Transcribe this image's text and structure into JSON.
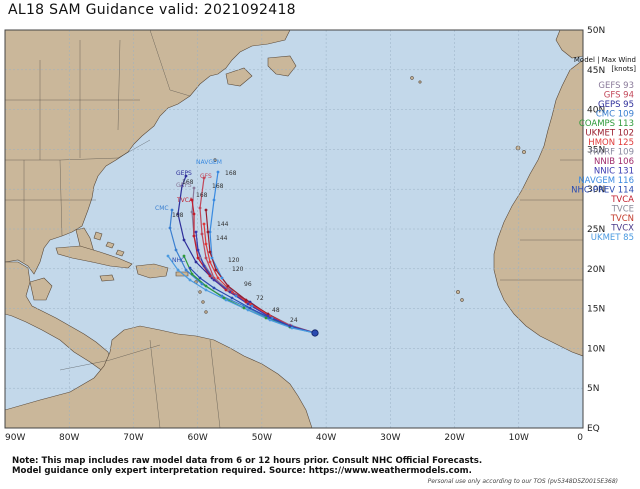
{
  "title": "AL18 SAM Guidance valid: 2021092418",
  "map": {
    "ocean_color": "#c3d8ea",
    "land_color": "#cab79a",
    "border_color": "#333333",
    "lon_labels": [
      "90W",
      "80W",
      "70W",
      "60W",
      "50W",
      "40W",
      "30W",
      "20W",
      "10W",
      "0"
    ],
    "lat_labels": [
      "50N",
      "45N",
      "40N",
      "35N",
      "30N",
      "25N",
      "20N",
      "15N",
      "10N",
      "5N",
      "EQ"
    ]
  },
  "legend": {
    "header_line1": "Model | Max Wind",
    "header_line2": "[knots]",
    "entries": [
      {
        "model": "GEFS",
        "wind": "93",
        "color": "#8a7a9a"
      },
      {
        "model": "GFS",
        "wind": "94",
        "color": "#c2485a"
      },
      {
        "model": "GEPS",
        "wind": "95",
        "color": "#2e2e9a"
      },
      {
        "model": "CMC",
        "wind": "109",
        "color": "#3a7fd0"
      },
      {
        "model": "COAMPS",
        "wind": "113",
        "color": "#2e9a3a"
      },
      {
        "model": "UKMET",
        "wind": "102",
        "color": "#9a1e2e"
      },
      {
        "model": "HMON",
        "wind": "125",
        "color": "#e03a3a"
      },
      {
        "model": "HWRF",
        "wind": "109",
        "color": "#8a8aa0"
      },
      {
        "model": "NNIB",
        "wind": "106",
        "color": "#a02a6a"
      },
      {
        "model": "NNIC",
        "wind": "131",
        "color": "#3a3ab0"
      },
      {
        "model": "NAVGEM",
        "wind": "116",
        "color": "#3a8ae0"
      },
      {
        "model": "NHC-PREV",
        "wind": "114",
        "color": "#2a4ab0"
      },
      {
        "model": "TVCA",
        "wind": "",
        "color": "#c21e2e"
      },
      {
        "model": "TVCE",
        "wind": "",
        "color": "#8a8a9a"
      },
      {
        "model": "TVCN",
        "wind": "",
        "color": "#c23a2a"
      },
      {
        "model": "TVCX",
        "wind": "",
        "color": "#4a3a8a"
      },
      {
        "model": "UKMET",
        "wind": "85",
        "color": "#4a9ae0"
      }
    ]
  },
  "track_labels": [
    {
      "text": "NAVGEM",
      "color": "#3a8ae0"
    },
    {
      "text": "168",
      "color": "#333333"
    },
    {
      "text": "GEPS",
      "color": "#2e2e9a"
    },
    {
      "text": "168",
      "color": "#333333"
    },
    {
      "text": "GFS",
      "color": "#c2485a"
    },
    {
      "text": "168",
      "color": "#333333"
    },
    {
      "text": "GEFS",
      "color": "#8a7a9a"
    },
    {
      "text": "168",
      "color": "#333333"
    },
    {
      "text": "TVCA",
      "color": "#c21e2e"
    },
    {
      "text": "CMC",
      "color": "#3a7fd0"
    },
    {
      "text": "168",
      "color": "#333333"
    },
    {
      "text": "144",
      "color": "#333333"
    },
    {
      "text": "144",
      "color": "#333333"
    },
    {
      "text": "120",
      "color": "#333333"
    },
    {
      "text": "120",
      "color": "#333333"
    },
    {
      "text": "96",
      "color": "#333333"
    },
    {
      "text": "72",
      "color": "#333333"
    },
    {
      "text": "48",
      "color": "#333333"
    },
    {
      "text": "24",
      "color": "#333333"
    },
    {
      "text": "NHC",
      "color": "#2a4ab0"
    }
  ],
  "note_line1": "Note: This map includes raw model data from 6 or 12 hours prior. Consult NHC Official Forecasts.",
  "note_line2": "Model guidance only expert interpretation required. Source: https://www.weathermodels.com.",
  "footer": "Personal use only according to our TOS (pv5348D5Z0015E368)"
}
